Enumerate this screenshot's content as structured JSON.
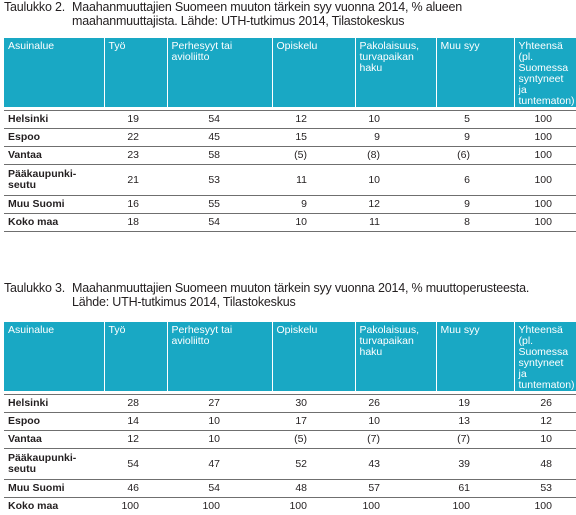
{
  "table2": {
    "number": "Taulukko 2.",
    "caption_line1": "Maahanmuuttajien Suomeen muuton tärkein syy vuonna 2014, % alueen",
    "caption_line2": "maahanmuuttajista. Lähde: UTH-tutkimus 2014, Tilastokeskus",
    "headers": [
      "Asuinalue",
      "Työ",
      "Perhesyyt tai avioliitto",
      "Opiskelu",
      "Pakolaisuus, turvapaikan haku",
      "Muu syy",
      "Yhteensä (pl. Suomessa syntyneet ja tuntematon)"
    ],
    "rows": [
      {
        "label": "Helsinki",
        "values": [
          "19",
          "54",
          "12",
          "10",
          "5",
          "100"
        ]
      },
      {
        "label": "Espoo",
        "values": [
          "22",
          "45",
          "15",
          "9",
          "9",
          "100"
        ]
      },
      {
        "label": "Vantaa",
        "values": [
          "23",
          "58",
          "(5)",
          "(8)",
          "(6)",
          "100"
        ]
      },
      {
        "label": "Pääkaupunki-seutu",
        "values": [
          "21",
          "53",
          "11",
          "10",
          "6",
          "100"
        ]
      },
      {
        "label": "Muu Suomi",
        "values": [
          "16",
          "55",
          "9",
          "12",
          "9",
          "100"
        ]
      },
      {
        "label": "Koko maa",
        "values": [
          "18",
          "54",
          "10",
          "11",
          "8",
          "100"
        ]
      }
    ]
  },
  "table3": {
    "number": "Taulukko 3.",
    "caption_line1": "Maahanmuuttajien Suomeen muuton tärkein syy vuonna 2014, % muuttoperusteesta.",
    "caption_line2": "Lähde: UTH-tutkimus 2014, Tilastokeskus",
    "headers": [
      "Asuinalue",
      "Työ",
      "Perhesyyt tai avioliitto",
      "Opiskelu",
      "Pakolaisuus, turvapaikan haku",
      "Muu syy",
      "Yhteensä (pl. Suomessa syntyneet ja tuntematon)"
    ],
    "rows": [
      {
        "label": "Helsinki",
        "values": [
          "28",
          "27",
          "30",
          "26",
          "19",
          "26"
        ]
      },
      {
        "label": "Espoo",
        "values": [
          "14",
          "10",
          "17",
          "10",
          "13",
          "12"
        ]
      },
      {
        "label": "Vantaa",
        "values": [
          "12",
          "10",
          "(5)",
          "(7)",
          "(7)",
          "10"
        ]
      },
      {
        "label": "Pääkaupunki-seutu",
        "values": [
          "54",
          "47",
          "52",
          "43",
          "39",
          "48"
        ]
      },
      {
        "label": "Muu Suomi",
        "values": [
          "46",
          "54",
          "48",
          "57",
          "61",
          "53"
        ]
      },
      {
        "label": "Koko maa",
        "values": [
          "100",
          "100",
          "100",
          "100",
          "100",
          "100"
        ]
      }
    ]
  }
}
